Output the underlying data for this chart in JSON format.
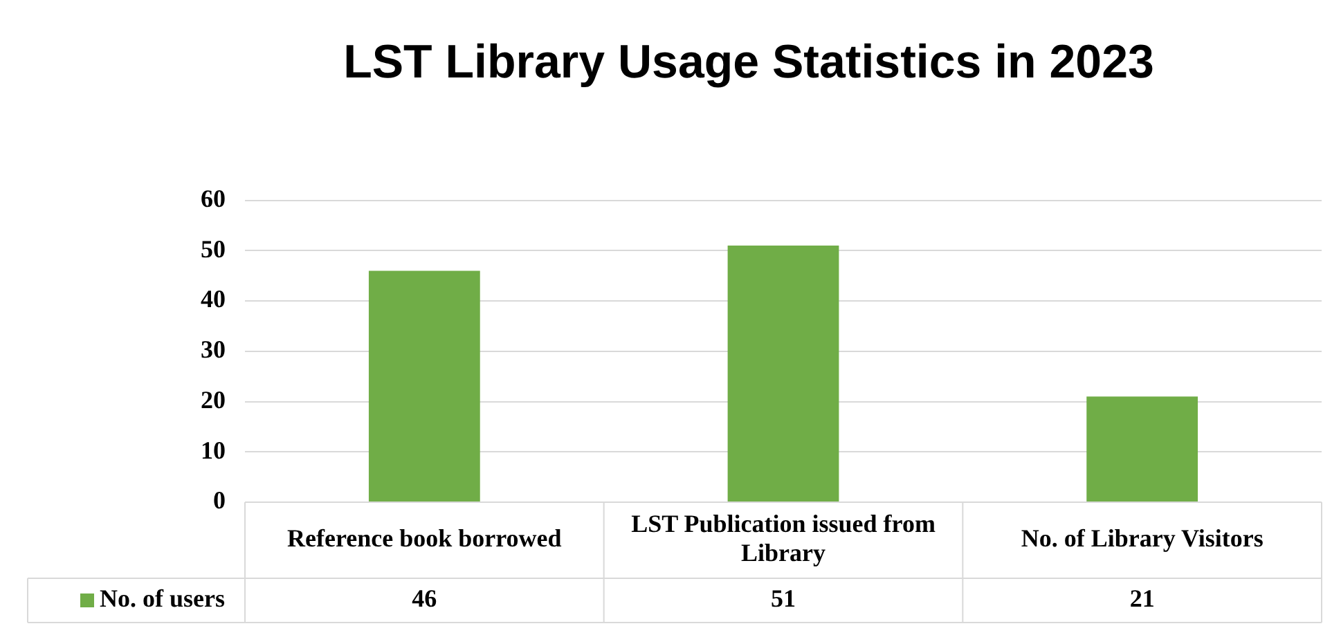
{
  "chart_data": {
    "type": "bar",
    "title": "LST Library Usage Statistics in 2023",
    "categories": [
      "Reference book borrowed",
      "LST Publication issued from Library",
      "No. of Library Visitors"
    ],
    "series": [
      {
        "name": "No. of users",
        "color": "#70ad47",
        "values": [
          46,
          51,
          21
        ]
      }
    ],
    "ylim": [
      0,
      60
    ],
    "yticks": [
      0,
      10,
      20,
      30,
      40,
      50,
      60
    ],
    "grid": "y",
    "legend": "bottom",
    "data_labels": true
  }
}
